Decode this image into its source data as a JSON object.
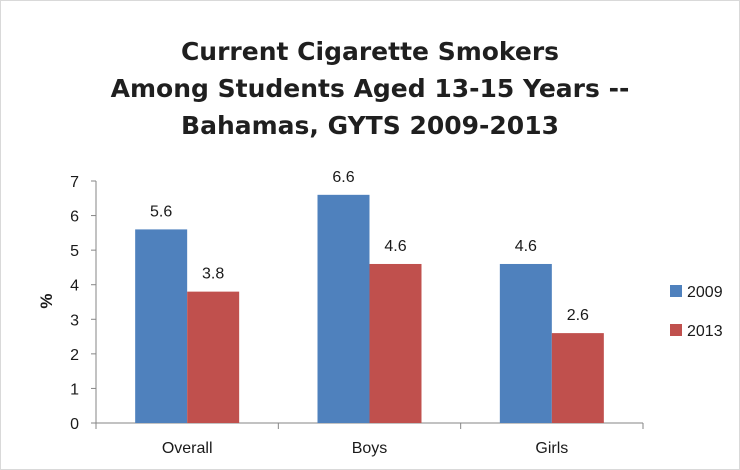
{
  "chart_data": {
    "type": "bar",
    "title_lines": [
      "Current Cigarette Smokers",
      "Among Students Aged 13-15 Years --",
      "Bahamas, GYTS 2009-2013"
    ],
    "xlabel": "",
    "ylabel": "%",
    "categories": [
      "Overall",
      "Boys",
      "Girls"
    ],
    "ylim": [
      0,
      7
    ],
    "yticks": [
      "0",
      "1",
      "2",
      "3",
      "4",
      "5",
      "6",
      "7"
    ],
    "grid": false,
    "legend_position": "right",
    "series": [
      {
        "name": "2009",
        "color": "#4f81bd",
        "values": [
          5.6,
          6.6,
          4.6
        ],
        "labels": [
          "5.6",
          "6.6",
          "4.6"
        ]
      },
      {
        "name": "2013",
        "color": "#c0504d",
        "values": [
          3.8,
          4.6,
          2.6
        ],
        "labels": [
          "3.8",
          "4.6",
          "2.6"
        ]
      }
    ]
  }
}
